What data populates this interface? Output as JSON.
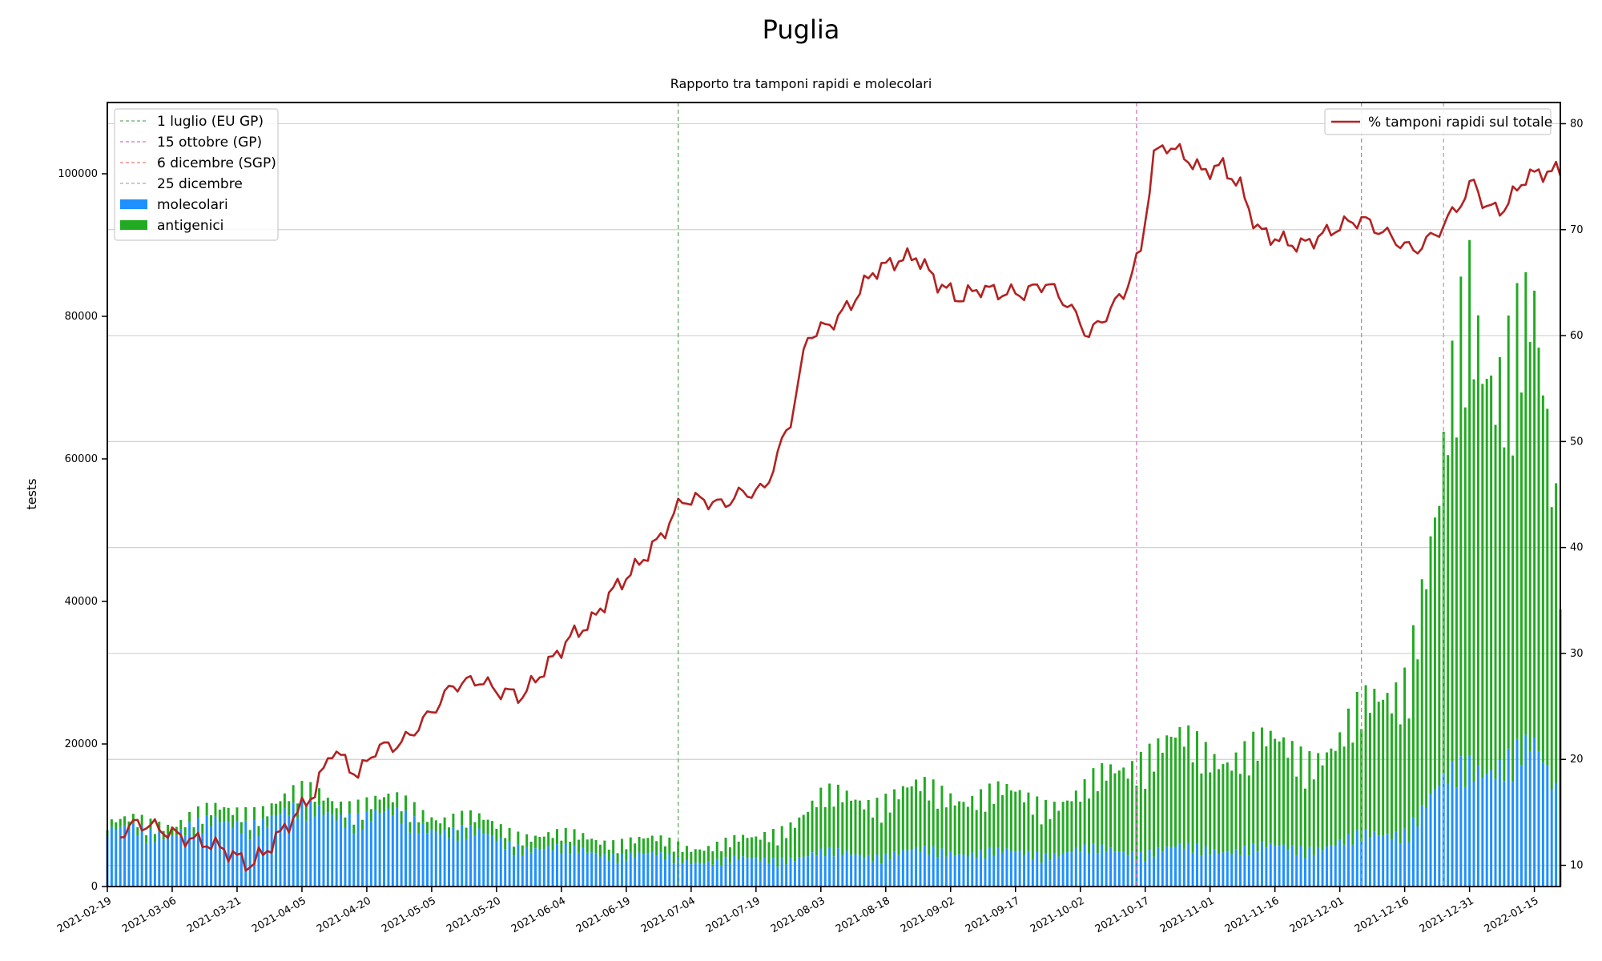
{
  "chart_data": {
    "type": "bar",
    "title": "Puglia",
    "subtitle": "Rapporto tra tamponi rapidi e molecolari",
    "ylabel": "tests",
    "ylim": [
      0,
      110000
    ],
    "y2lim": [
      8,
      82
    ],
    "yticks": [
      "0",
      "20000",
      "40000",
      "60000",
      "80000",
      "100000"
    ],
    "y2ticks": [
      "10",
      "20",
      "30",
      "40",
      "50",
      "60",
      "70",
      "80"
    ],
    "grid": true,
    "legend_placement": "top-left",
    "legend2_placement": "top-right",
    "x_start": "2021-02-19",
    "x_end": "2022-01-21",
    "xticks": [
      "2021-02-19",
      "2021-03-06",
      "2021-03-21",
      "2021-04-05",
      "2021-04-20",
      "2021-05-05",
      "2021-05-20",
      "2021-06-04",
      "2021-06-19",
      "2021-07-04",
      "2021-07-19",
      "2021-08-03",
      "2021-08-18",
      "2021-09-02",
      "2021-09-17",
      "2021-10-02",
      "2021-10-17",
      "2021-11-01",
      "2021-11-16",
      "2021-12-01",
      "2021-12-16",
      "2021-12-31",
      "2022-01-15"
    ],
    "vlines": [
      {
        "date": "2021-07-01",
        "label": "1 luglio (EU GP)",
        "color": "#66aa66"
      },
      {
        "date": "2021-10-15",
        "label": "15 ottobre (GP)",
        "color": "#cc77bb"
      },
      {
        "date": "2021-12-06",
        "label": "6 dicembre (SGP)",
        "color": "#ee7777"
      },
      {
        "date": "2021-12-25",
        "label": "25 dicembre",
        "color": "#aaaaaa"
      }
    ],
    "series": [
      {
        "name": "molecolari",
        "type": "bar",
        "color": "#1e90ff",
        "axis": "left",
        "points": [
          [
            "2021-02-19",
            8500
          ],
          [
            "2021-03-01",
            8000
          ],
          [
            "2021-03-10",
            9500
          ],
          [
            "2021-03-20",
            9000
          ],
          [
            "2021-03-30",
            11500
          ],
          [
            "2021-04-05",
            11000
          ],
          [
            "2021-04-15",
            11500
          ],
          [
            "2021-04-25",
            10500
          ],
          [
            "2021-05-05",
            9500
          ],
          [
            "2021-05-20",
            7000
          ],
          [
            "2021-06-04",
            5500
          ],
          [
            "2021-06-19",
            5000
          ],
          [
            "2021-07-04",
            4000
          ],
          [
            "2021-07-19",
            4000
          ],
          [
            "2021-08-03",
            5000
          ],
          [
            "2021-08-18",
            5000
          ],
          [
            "2021-09-02",
            5500
          ],
          [
            "2021-09-17",
            5000
          ],
          [
            "2021-10-02",
            5500
          ],
          [
            "2021-10-17",
            5500
          ],
          [
            "2021-11-01",
            5800
          ],
          [
            "2021-11-16",
            5800
          ],
          [
            "2021-12-01",
            6500
          ],
          [
            "2021-12-16",
            9000
          ],
          [
            "2021-12-31",
            19000
          ],
          [
            "2022-01-15",
            20000
          ],
          [
            "2022-01-21",
            14000
          ]
        ]
      },
      {
        "name": "antigenici",
        "type": "bar",
        "color": "#22aa22",
        "axis": "left",
        "points": [
          [
            "2021-02-19",
            1000
          ],
          [
            "2021-03-01",
            1500
          ],
          [
            "2021-03-10",
            1500
          ],
          [
            "2021-03-20",
            2000
          ],
          [
            "2021-03-30",
            2000
          ],
          [
            "2021-04-05",
            2500
          ],
          [
            "2021-04-15",
            2000
          ],
          [
            "2021-04-25",
            2000
          ],
          [
            "2021-05-05",
            2000
          ],
          [
            "2021-05-20",
            2000
          ],
          [
            "2021-06-04",
            2000
          ],
          [
            "2021-06-19",
            2200
          ],
          [
            "2021-07-04",
            2200
          ],
          [
            "2021-07-19",
            3000
          ],
          [
            "2021-08-03",
            8000
          ],
          [
            "2021-08-18",
            9000
          ],
          [
            "2021-09-02",
            9000
          ],
          [
            "2021-09-17",
            8500
          ],
          [
            "2021-10-02",
            8000
          ],
          [
            "2021-10-17",
            16000
          ],
          [
            "2021-11-01",
            15000
          ],
          [
            "2021-11-16",
            15000
          ],
          [
            "2021-12-01",
            15000
          ],
          [
            "2021-12-16",
            25000
          ],
          [
            "2021-12-24",
            40000
          ],
          [
            "2021-12-31",
            75000
          ],
          [
            "2022-01-07",
            62000
          ],
          [
            "2022-01-15",
            60000
          ],
          [
            "2022-01-21",
            40000
          ]
        ]
      },
      {
        "name": "% tamponi rapidi sul totale",
        "type": "line",
        "color": "#b22222",
        "axis": "right",
        "points": [
          [
            "2021-02-22",
            13
          ],
          [
            "2021-02-26",
            14
          ],
          [
            "2021-03-02",
            13.6
          ],
          [
            "2021-03-08",
            12.7
          ],
          [
            "2021-03-14",
            12.1
          ],
          [
            "2021-03-18",
            11.5
          ],
          [
            "2021-03-24",
            10
          ],
          [
            "2021-03-28",
            11.5
          ],
          [
            "2021-04-02",
            14
          ],
          [
            "2021-04-08",
            17
          ],
          [
            "2021-04-12",
            21
          ],
          [
            "2021-04-18",
            18.5
          ],
          [
            "2021-04-22",
            21
          ],
          [
            "2021-04-28",
            21.5
          ],
          [
            "2021-05-04",
            24
          ],
          [
            "2021-05-10",
            27
          ],
          [
            "2021-05-16",
            27.5
          ],
          [
            "2021-05-20",
            26.5
          ],
          [
            "2021-05-26",
            26
          ],
          [
            "2021-06-01",
            29
          ],
          [
            "2021-06-06",
            31.5
          ],
          [
            "2021-06-11",
            33
          ],
          [
            "2021-06-16",
            36
          ],
          [
            "2021-06-21",
            38
          ],
          [
            "2021-06-27",
            41
          ],
          [
            "2021-07-02",
            44.5
          ],
          [
            "2021-07-07",
            44.5
          ],
          [
            "2021-07-11",
            44
          ],
          [
            "2021-07-15",
            45
          ],
          [
            "2021-07-21",
            45.5
          ],
          [
            "2021-07-27",
            52
          ],
          [
            "2021-07-31",
            60
          ],
          [
            "2021-08-05",
            61
          ],
          [
            "2021-08-10",
            63
          ],
          [
            "2021-08-15",
            66
          ],
          [
            "2021-08-20",
            67
          ],
          [
            "2021-08-25",
            67.5
          ],
          [
            "2021-08-30",
            65
          ],
          [
            "2021-09-04",
            63.5
          ],
          [
            "2021-09-09",
            64.5
          ],
          [
            "2021-09-14",
            64
          ],
          [
            "2021-09-19",
            64
          ],
          [
            "2021-09-24",
            65
          ],
          [
            "2021-09-29",
            63
          ],
          [
            "2021-10-04",
            60
          ],
          [
            "2021-10-08",
            62
          ],
          [
            "2021-10-12",
            64
          ],
          [
            "2021-10-16",
            68
          ],
          [
            "2021-10-19",
            77
          ],
          [
            "2021-10-22",
            78
          ],
          [
            "2021-10-26",
            77
          ],
          [
            "2021-10-30",
            75.5
          ],
          [
            "2021-11-04",
            76
          ],
          [
            "2021-11-08",
            74
          ],
          [
            "2021-11-12",
            70
          ],
          [
            "2021-11-17",
            69
          ],
          [
            "2021-11-22",
            68.5
          ],
          [
            "2021-11-27",
            69.5
          ],
          [
            "2021-12-02",
            70.5
          ],
          [
            "2021-12-06",
            71
          ],
          [
            "2021-12-10",
            70
          ],
          [
            "2021-12-14",
            69
          ],
          [
            "2021-12-18",
            68
          ],
          [
            "2021-12-23",
            69.5
          ],
          [
            "2021-12-28",
            72
          ],
          [
            "2022-01-01",
            74.5
          ],
          [
            "2022-01-04",
            72
          ],
          [
            "2022-01-08",
            72
          ],
          [
            "2022-01-13",
            75
          ],
          [
            "2022-01-18",
            75.5
          ],
          [
            "2022-01-21",
            75.5
          ]
        ]
      }
    ]
  }
}
